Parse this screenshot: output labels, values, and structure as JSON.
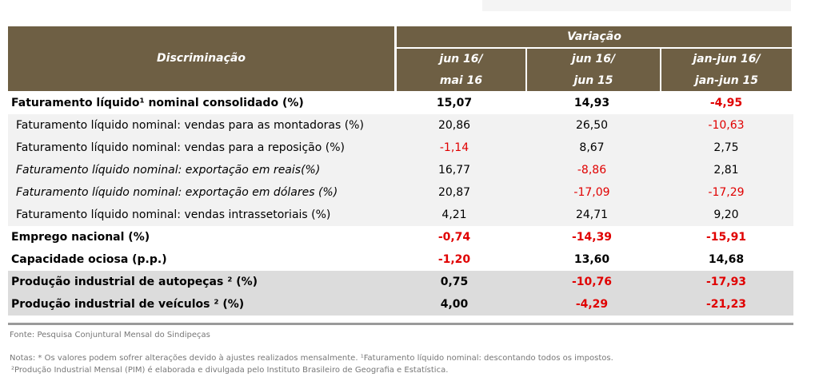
{
  "header": {
    "discriminacao": "Discriminação",
    "variacao": "Variação",
    "cols": [
      [
        "jun 16/",
        "mai 16"
      ],
      [
        "jun 16/",
        "jun 15"
      ],
      [
        "jan-jun 16/",
        "jan-jun 15"
      ]
    ]
  },
  "rows": [
    {
      "label": "Faturamento líquido¹ nominal consolidado (%)",
      "values": [
        "15,07",
        "14,93",
        "-4,95"
      ]
    },
    {
      "label": "Faturamento líquido nominal: vendas para as montadoras (%)",
      "values": [
        "20,86",
        "26,50",
        "-10,63"
      ]
    },
    {
      "label": "Faturamento líquido nominal: vendas para a reposição (%)",
      "values": [
        "-1,14",
        "8,67",
        "2,75"
      ]
    },
    {
      "label": "Faturamento líquido nominal: exportação em reais(%)",
      "values": [
        "16,77",
        "-8,86",
        "2,81"
      ]
    },
    {
      "label": "Faturamento líquido nominal: exportação em dólares (%)",
      "values": [
        "20,87",
        "-17,09",
        "-17,29"
      ]
    },
    {
      "label": "Faturamento líquido nominal: vendas intrassetoriais (%)",
      "values": [
        "4,21",
        "24,71",
        "9,20"
      ]
    },
    {
      "label": "Emprego nacional (%)",
      "values": [
        "-0,74",
        "-14,39",
        "-15,91"
      ]
    },
    {
      "label": "Capacidade ociosa (p.p.)",
      "values": [
        "-1,20",
        "13,60",
        "14,68"
      ]
    },
    {
      "label": "Produção industrial de autopeças ²  (%)",
      "values": [
        "0,75",
        "-10,76",
        "-17,93"
      ]
    },
    {
      "label": "Produção industrial de veículos ²  (%)",
      "values": [
        "4,00",
        "-4,29",
        "-21,23"
      ]
    }
  ],
  "footer": {
    "fonte": "Fonte: Pesquisa Conjuntural Mensal do Sindipeças",
    "notas1": "Notas: * Os valores podem sofrer alterações devido à ajustes realizados mensalmente. ¹Faturamento líquido nominal: descontando todos os impostos.",
    "notas2": "²Produção Industrial Mensal (PIM) é elaborada e divulgada pelo Instituto Brasileiro de Geografia e Estatística."
  },
  "colors": {
    "header": "#6e5f44",
    "negative": "#e00000"
  }
}
